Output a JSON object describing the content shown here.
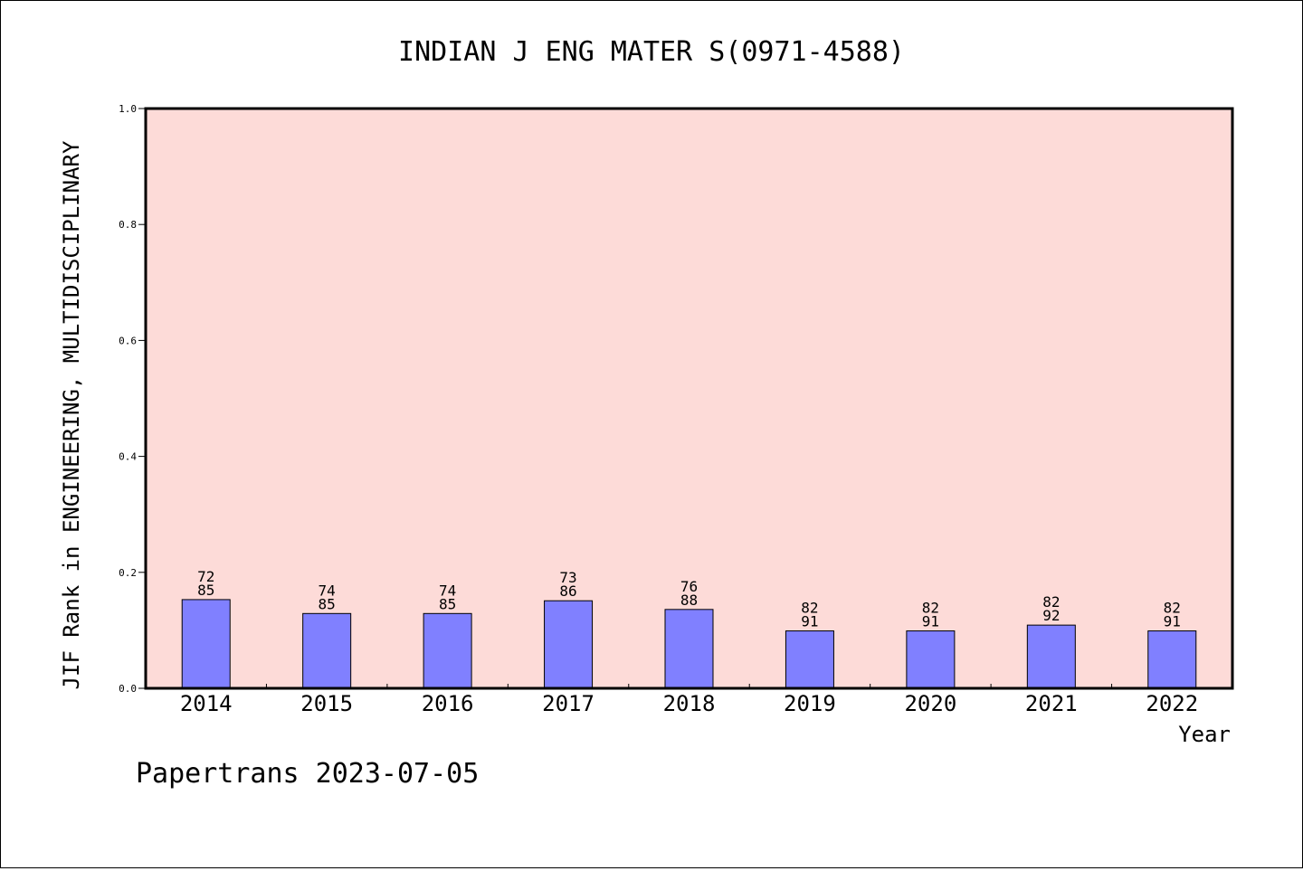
{
  "chart_data": {
    "type": "bar",
    "title": "INDIAN J ENG MATER S(0971-4588)",
    "xlabel": "Year",
    "ylabel": "JIF Rank in ENGINEERING, MULTIDISCIPLINARY",
    "ylim": [
      0.0,
      1.0
    ],
    "yticks": [
      "0.0",
      "0.2",
      "0.4",
      "0.6",
      "0.8",
      "1.0"
    ],
    "categories": [
      "2014",
      "2015",
      "2016",
      "2017",
      "2018",
      "2019",
      "2020",
      "2021",
      "2022"
    ],
    "values": [
      0.153,
      0.129,
      0.129,
      0.151,
      0.136,
      0.099,
      0.099,
      0.109,
      0.099
    ],
    "labels_top": [
      "72",
      "74",
      "74",
      "73",
      "76",
      "82",
      "82",
      "82",
      "82"
    ],
    "labels_bottom": [
      "85",
      "85",
      "85",
      "86",
      "88",
      "91",
      "91",
      "92",
      "91"
    ],
    "grid": false,
    "colors": {
      "plot_background": "#fddbd8",
      "bar_fill": "#8080ff",
      "bar_stroke": "#000000"
    }
  },
  "footer": {
    "text": "Papertrans 2023-07-05"
  }
}
